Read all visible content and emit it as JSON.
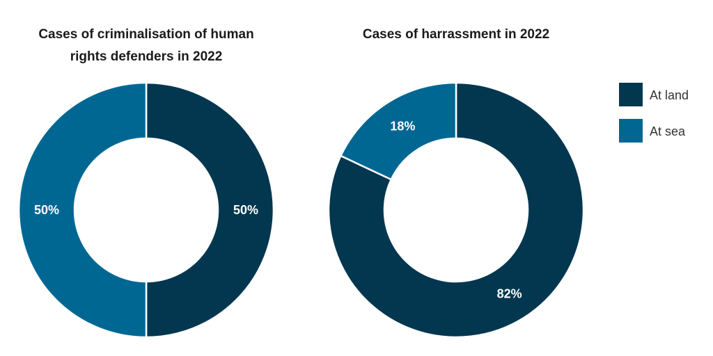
{
  "colors": {
    "at_land": "#02374f",
    "at_sea": "#006792"
  },
  "legend": [
    {
      "label": "At land",
      "color": "#02374f"
    },
    {
      "label": "At sea",
      "color": "#006792"
    }
  ],
  "chart_data": [
    {
      "type": "pie",
      "donut": true,
      "title": [
        "Cases of criminalisation of human",
        "rights defenders in 2022"
      ],
      "categories": [
        "At land",
        "At sea"
      ],
      "values": [
        50,
        50
      ],
      "labels": [
        "50%",
        "50%"
      ],
      "legend": "right"
    },
    {
      "type": "pie",
      "donut": true,
      "title": [
        "Cases of harrassment in 2022"
      ],
      "categories": [
        "At land",
        "At sea"
      ],
      "values": [
        82,
        18
      ],
      "labels": [
        "82%",
        "18%"
      ],
      "legend": "right"
    }
  ]
}
